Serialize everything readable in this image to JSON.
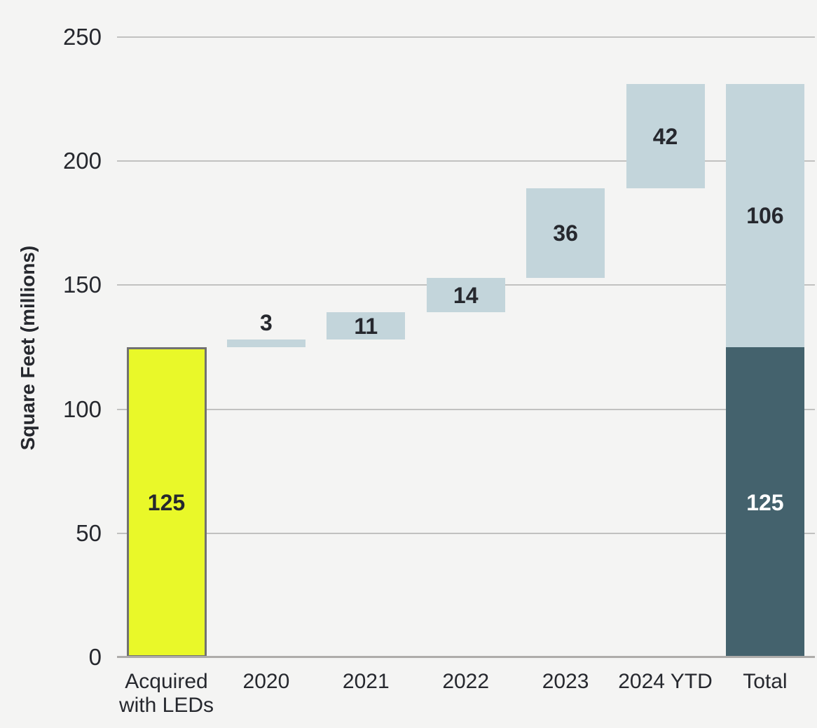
{
  "chart_data": {
    "type": "bar",
    "subtype": "waterfall",
    "title": "",
    "xlabel": "",
    "ylabel": "Square Feet (millions)",
    "ylim": [
      0,
      250
    ],
    "yticks": [
      0,
      50,
      100,
      150,
      200,
      250
    ],
    "grid": true,
    "legend": "none",
    "categories": [
      "Acquired\nwith LEDs",
      "2020",
      "2021",
      "2022",
      "2023",
      "2024 YTD",
      "Total"
    ],
    "bars": [
      {
        "category": "Acquired\nwith LEDs",
        "segments": [
          {
            "value": 125,
            "from": 0,
            "to": 125,
            "fill": "yellow",
            "label": "125"
          }
        ]
      },
      {
        "category": "2020",
        "segments": [
          {
            "value": 3,
            "from": 125,
            "to": 128,
            "fill": "lightblue",
            "label": "3",
            "label_position": "above"
          }
        ]
      },
      {
        "category": "2021",
        "segments": [
          {
            "value": 11,
            "from": 128,
            "to": 139,
            "fill": "lightblue",
            "label": "11"
          }
        ]
      },
      {
        "category": "2022",
        "segments": [
          {
            "value": 14,
            "from": 139,
            "to": 153,
            "fill": "lightblue",
            "label": "14"
          }
        ]
      },
      {
        "category": "2023",
        "segments": [
          {
            "value": 36,
            "from": 153,
            "to": 189,
            "fill": "lightblue",
            "label": "36"
          }
        ]
      },
      {
        "category": "2024 YTD",
        "segments": [
          {
            "value": 42,
            "from": 189,
            "to": 231,
            "fill": "lightblue",
            "label": "42"
          }
        ]
      },
      {
        "category": "Total",
        "segments": [
          {
            "value": 125,
            "from": 0,
            "to": 125,
            "fill": "teal",
            "label": "125",
            "label_color": "white"
          },
          {
            "value": 106,
            "from": 125,
            "to": 231,
            "fill": "lightblue",
            "label": "106"
          }
        ]
      }
    ],
    "colors": {
      "background": "#f4f4f3",
      "lightblue": "#c3d5db",
      "teal": "#44626d",
      "yellow": "#e9f829",
      "yellow_border": "#717171",
      "grid": "#c1c1c0",
      "axis": "#aeacaa",
      "text": "#26282e",
      "text_white": "#ffffff"
    }
  }
}
